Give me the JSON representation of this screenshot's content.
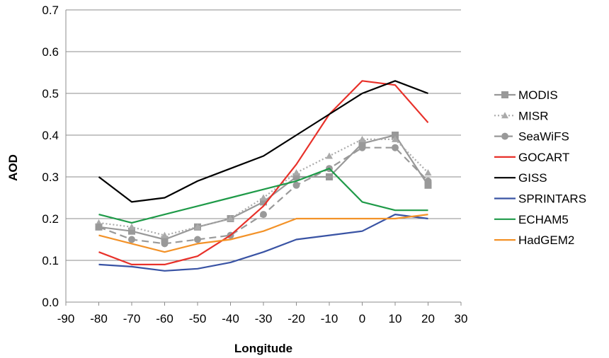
{
  "chart_data": {
    "type": "line",
    "xlabel": "Longitude",
    "ylabel": "AOD",
    "xlim": [
      -90,
      30
    ],
    "ylim": [
      0,
      0.7
    ],
    "xticks": [
      "-90",
      "-80",
      "-70",
      "-60",
      "-50",
      "-40",
      "-30",
      "-20",
      "-10",
      "0",
      "10",
      "20",
      "30"
    ],
    "yticks": [
      "0.0",
      "0.1",
      "0.2",
      "0.3",
      "0.4",
      "0.5",
      "0.6",
      "0.7"
    ],
    "grid": "horizontal",
    "legend_position": "right",
    "x": [
      -80,
      -70,
      -60,
      -50,
      -40,
      -30,
      -20,
      -10,
      0,
      10,
      20
    ],
    "series": [
      {
        "name": "MODIS",
        "color": "#999999",
        "dash": "solid",
        "marker": "square",
        "values": [
          0.18,
          0.17,
          0.15,
          0.18,
          0.2,
          0.24,
          0.3,
          0.3,
          0.38,
          0.4,
          0.28
        ]
      },
      {
        "name": "MISR",
        "color": "#aaaaaa",
        "dash": "dotted",
        "marker": "triangle",
        "values": [
          0.19,
          0.18,
          0.16,
          0.18,
          0.2,
          0.25,
          0.31,
          0.35,
          0.39,
          0.39,
          0.31
        ]
      },
      {
        "name": "SeaWiFS",
        "color": "#999999",
        "dash": "dashed",
        "marker": "circle",
        "values": [
          0.18,
          0.15,
          0.14,
          0.15,
          0.16,
          0.21,
          0.28,
          0.32,
          0.37,
          0.37,
          0.29
        ]
      },
      {
        "name": "GOCART",
        "color": "#e8312a",
        "dash": "solid",
        "marker": "none",
        "values": [
          0.12,
          0.09,
          0.09,
          0.11,
          0.16,
          0.23,
          0.33,
          0.45,
          0.53,
          0.52,
          0.43
        ]
      },
      {
        "name": "GISS",
        "color": "#000000",
        "dash": "solid",
        "marker": "none",
        "values": [
          0.3,
          0.24,
          0.25,
          0.29,
          0.32,
          0.35,
          0.4,
          0.45,
          0.5,
          0.53,
          0.5
        ]
      },
      {
        "name": "SPRINTARS",
        "color": "#3953a4",
        "dash": "solid",
        "marker": "none",
        "values": [
          0.09,
          0.085,
          0.075,
          0.08,
          0.095,
          0.12,
          0.15,
          0.16,
          0.17,
          0.21,
          0.2
        ]
      },
      {
        "name": "ECHAM5",
        "color": "#1e9a48",
        "dash": "solid",
        "marker": "none",
        "values": [
          0.21,
          0.19,
          0.21,
          0.23,
          0.25,
          0.27,
          0.29,
          0.32,
          0.24,
          0.22,
          0.22
        ]
      },
      {
        "name": "HadGEM2",
        "color": "#f39228",
        "dash": "solid",
        "marker": "none",
        "values": [
          0.16,
          0.14,
          0.12,
          0.14,
          0.15,
          0.17,
          0.2,
          0.2,
          0.2,
          0.2,
          0.21
        ]
      }
    ]
  }
}
